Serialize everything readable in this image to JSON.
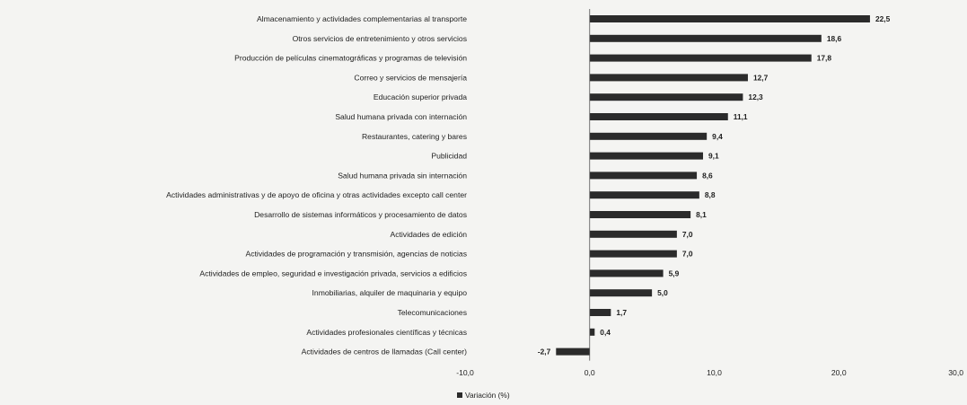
{
  "chart_data": {
    "type": "bar",
    "orientation": "horizontal",
    "categories": [
      "Almacenamiento y actividades complementarias al transporte",
      "Otros servicios de entretenimiento y otros servicios",
      "Producción de películas cinematográficas y programas de televisión",
      "Correo y servicios de mensajería",
      "Educación superior privada",
      "Salud humana privada con internación",
      "Restaurantes, catering y bares",
      "Publicidad",
      "Salud humana privada sin internación",
      "Actividades administrativas y de apoyo de oficina y otras actividades excepto call center",
      "Desarrollo de sistemas informáticos y procesamiento de datos",
      "Actividades de edición",
      "Actividades de programación y transmisión,  agencias de noticias",
      "Actividades de empleo, seguridad e investigación privada, servicios a edificios",
      "Inmobiliarias, alquiler de maquinaria y equipo",
      "Telecomunicaciones",
      "Actividades profesionales científicas y técnicas",
      "Actividades de centros de llamadas (Call center)"
    ],
    "values": [
      22.5,
      18.6,
      17.8,
      12.7,
      12.3,
      11.1,
      9.4,
      9.1,
      8.6,
      8.8,
      8.1,
      7.0,
      7.0,
      5.9,
      5.0,
      1.7,
      0.4,
      -2.7
    ],
    "value_labels": [
      "22,5",
      "18,6",
      "17,8",
      "12,7",
      "12,3",
      "11,1",
      "9,4",
      "9,1",
      "8,6",
      "8,8",
      "8,1",
      "7,0",
      "7,0",
      "5,9",
      "5,0",
      "1,7",
      "0,4",
      "-2,7"
    ],
    "series": [
      {
        "name": "Variación (%)"
      }
    ],
    "xlim": [
      -10,
      30
    ],
    "xticks": [
      -10,
      0,
      10,
      20,
      30
    ],
    "xtick_labels": [
      "-10,0",
      "0,0",
      "10,0",
      "20,0",
      "30,0"
    ],
    "title": "",
    "xlabel": "",
    "ylabel": "",
    "grid": false,
    "legend_position": "bottom-left",
    "bar_color": "#2b2b2b"
  }
}
